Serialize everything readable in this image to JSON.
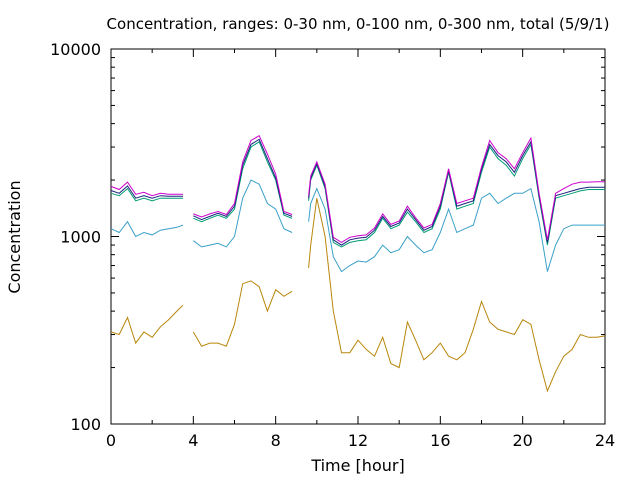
{
  "chart_data": {
    "type": "line",
    "title": "Concentration, ranges: 0-30 nm, 0-100 nm, 0-300 nm, total (5/9/1)",
    "xlabel": "Time [hour]",
    "ylabel": "Concentration",
    "xlim": [
      0,
      24
    ],
    "ylim": [
      100,
      10000
    ],
    "yscale": "log",
    "grid": false,
    "legend": "none",
    "x_ticks": [
      "0",
      "4",
      "8",
      "12",
      "16",
      "20",
      "24"
    ],
    "y_ticks": [
      "100",
      "1000",
      "10000"
    ],
    "x": [
      0,
      0.4,
      0.8,
      1.2,
      1.6,
      2.0,
      2.4,
      2.8,
      3.2,
      3.5,
      3.6,
      4.0,
      4.4,
      4.8,
      5.2,
      5.6,
      6.0,
      6.4,
      6.8,
      7.2,
      7.6,
      8.0,
      8.4,
      8.8,
      9.2,
      9.6,
      9.7,
      10.0,
      10.4,
      10.8,
      11.2,
      11.6,
      12.0,
      12.4,
      12.8,
      13.2,
      13.6,
      14.0,
      14.4,
      14.8,
      15.2,
      15.6,
      16.0,
      16.4,
      16.8,
      17.2,
      17.6,
      18.0,
      18.4,
      18.8,
      19.2,
      19.6,
      20.0,
      20.4,
      20.8,
      21.2,
      21.6,
      22.0,
      22.4,
      22.8,
      23.2,
      23.6,
      24.0
    ],
    "series": [
      {
        "color": "#b8860b",
        "values": [
          310,
          300,
          370,
          270,
          310,
          290,
          330,
          360,
          400,
          430,
          null,
          310,
          260,
          270,
          270,
          260,
          340,
          560,
          580,
          540,
          400,
          520,
          480,
          510,
          null,
          680,
          900,
          1600,
          1000,
          400,
          240,
          240,
          280,
          250,
          230,
          290,
          210,
          200,
          350,
          280,
          220,
          240,
          270,
          230,
          220,
          240,
          320,
          450,
          350,
          320,
          310,
          300,
          360,
          340,
          220,
          150,
          190,
          230,
          250,
          300,
          290,
          290,
          295
        ]
      },
      {
        "color": "#3aa0c8",
        "values": [
          1100,
          1050,
          1200,
          1000,
          1050,
          1020,
          1080,
          1100,
          1120,
          1150,
          null,
          950,
          880,
          900,
          920,
          880,
          1000,
          1600,
          2000,
          1900,
          1500,
          1400,
          1100,
          1050,
          null,
          1200,
          1500,
          1800,
          1400,
          780,
          650,
          700,
          740,
          730,
          780,
          900,
          820,
          850,
          1000,
          900,
          820,
          850,
          1050,
          1400,
          1050,
          1100,
          1150,
          1600,
          1700,
          1500,
          1600,
          1700,
          1700,
          1800,
          1200,
          650,
          900,
          1100,
          1150,
          1150,
          1150,
          1150,
          1150
        ]
      },
      {
        "color": "#009e73",
        "values": [
          1700,
          1650,
          1800,
          1550,
          1600,
          1550,
          1600,
          1600,
          1600,
          1600,
          null,
          1250,
          1200,
          1250,
          1300,
          1250,
          1400,
          2300,
          3000,
          3200,
          2500,
          2000,
          1300,
          1250,
          null,
          1550,
          2000,
          2400,
          1800,
          930,
          880,
          930,
          950,
          960,
          1050,
          1250,
          1100,
          1150,
          1350,
          1200,
          1050,
          1100,
          1400,
          2200,
          1400,
          1450,
          1500,
          2200,
          3000,
          2600,
          2400,
          2100,
          2600,
          3100,
          1600,
          900,
          1600,
          1650,
          1700,
          1750,
          1780,
          1780,
          1780
        ]
      },
      {
        "color": "#1a237e",
        "values": [
          1760,
          1700,
          1860,
          1600,
          1650,
          1600,
          1650,
          1640,
          1640,
          1640,
          null,
          1290,
          1230,
          1280,
          1330,
          1280,
          1450,
          2400,
          3100,
          3300,
          2600,
          2050,
          1330,
          1280,
          null,
          1600,
          2050,
          2450,
          1850,
          960,
          900,
          960,
          980,
          990,
          1080,
          1280,
          1130,
          1180,
          1400,
          1230,
          1080,
          1130,
          1450,
          2250,
          1450,
          1500,
          1550,
          2280,
          3100,
          2700,
          2500,
          2200,
          2700,
          3200,
          1650,
          930,
          1650,
          1700,
          1750,
          1800,
          1830,
          1830,
          1830
        ]
      },
      {
        "color": "#cc00cc",
        "values": [
          1850,
          1780,
          1950,
          1680,
          1720,
          1650,
          1700,
          1680,
          1680,
          1680,
          null,
          1320,
          1270,
          1320,
          1360,
          1310,
          1500,
          2500,
          3250,
          3450,
          2750,
          2150,
          1360,
          1310,
          null,
          1650,
          2100,
          2500,
          1900,
          990,
          930,
          990,
          1010,
          1020,
          1110,
          1320,
          1160,
          1210,
          1450,
          1260,
          1110,
          1160,
          1500,
          2300,
          1500,
          1550,
          1600,
          2350,
          3250,
          2800,
          2600,
          2300,
          2800,
          3350,
          1700,
          960,
          1700,
          1800,
          1900,
          1950,
          1950,
          1960,
          1960
        ]
      }
    ]
  }
}
